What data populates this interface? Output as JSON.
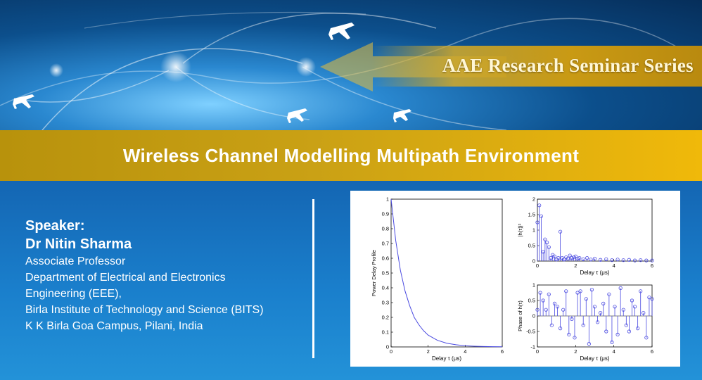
{
  "banner": {
    "series_title": "AAE Research Seminar Series"
  },
  "title": "Wireless Channel Modelling Multipath Environment",
  "speaker": {
    "heading": "Speaker:",
    "name": "Dr Nitin Sharma",
    "lines": [
      "Associate Professor",
      "Department of Electrical and Electronics",
      "Engineering (EEE),",
      "Birla Institute of Technology and Science (BITS)",
      "K K Birla Goa Campus, Pilani, India"
    ]
  },
  "chart_data": [
    {
      "type": "line",
      "xlabel": "Delay τ (μs)",
      "ylabel": "Power Delay Profile",
      "xlim": [
        0,
        6
      ],
      "ylim": [
        0,
        1
      ],
      "xticks": [
        "0",
        "2",
        "4",
        "6"
      ],
      "yticks": [
        "0",
        "0.1",
        "0.2",
        "0.3",
        "0.4",
        "0.5",
        "0.6",
        "0.7",
        "0.8",
        "0.9",
        "1"
      ],
      "x": [
        0,
        0.25,
        0.5,
        0.75,
        1,
        1.25,
        1.5,
        1.75,
        2,
        2.5,
        3,
        3.5,
        4,
        4.5,
        5,
        5.5,
        6
      ],
      "y": [
        1,
        0.72,
        0.52,
        0.38,
        0.28,
        0.2,
        0.15,
        0.11,
        0.08,
        0.045,
        0.025,
        0.015,
        0.008,
        0.005,
        0.003,
        0.002,
        0.001
      ],
      "color": "#4a4ae0"
    },
    {
      "type": "scatter",
      "xlabel": "Delay τ (μs)",
      "ylabel": "|h(τ)|²",
      "xlim": [
        0,
        6
      ],
      "ylim": [
        0,
        2
      ],
      "xticks": [
        "0",
        "2",
        "4",
        "6"
      ],
      "yticks": [
        "0",
        "0.5",
        "1",
        "1.5",
        "2"
      ],
      "x": [
        0,
        0.1,
        0.2,
        0.3,
        0.4,
        0.5,
        0.6,
        0.7,
        0.8,
        0.9,
        1.0,
        1.1,
        1.2,
        1.3,
        1.4,
        1.5,
        1.6,
        1.7,
        1.8,
        1.9,
        2.0,
        2.1,
        2.2,
        2.4,
        2.6,
        2.8,
        3.0,
        3.3,
        3.6,
        3.9,
        4.2,
        4.5,
        4.8,
        5.1,
        5.4,
        5.7,
        6.0
      ],
      "y": [
        1.25,
        1.8,
        1.45,
        0.3,
        0.7,
        0.6,
        0.45,
        0.1,
        0.2,
        0.15,
        0.05,
        0.1,
        0.95,
        0.1,
        0.05,
        0.12,
        0.08,
        0.18,
        0.1,
        0.12,
        0.15,
        0.08,
        0.1,
        0.06,
        0.1,
        0.05,
        0.08,
        0.04,
        0.06,
        0.03,
        0.05,
        0.03,
        0.04,
        0.02,
        0.03,
        0.02,
        0.02
      ],
      "color": "#4a4ae0"
    },
    {
      "type": "scatter",
      "xlabel": "Delay τ (μs)",
      "ylabel": "Phase of h(τ)",
      "xlim": [
        0,
        6
      ],
      "ylim": [
        -1,
        1
      ],
      "xticks": [
        "0",
        "2",
        "4",
        "6"
      ],
      "yticks": [
        "-1",
        "-0.5",
        "0",
        "0.5",
        "1"
      ],
      "x": [
        0,
        0.15,
        0.3,
        0.45,
        0.6,
        0.75,
        0.9,
        1.05,
        1.2,
        1.35,
        1.5,
        1.65,
        1.8,
        1.95,
        2.1,
        2.25,
        2.4,
        2.55,
        2.7,
        2.85,
        3.0,
        3.15,
        3.3,
        3.45,
        3.6,
        3.75,
        3.9,
        4.05,
        4.2,
        4.35,
        4.5,
        4.65,
        4.8,
        4.95,
        5.1,
        5.25,
        5.4,
        5.55,
        5.7,
        5.85,
        6.0
      ],
      "y": [
        0.2,
        0.75,
        0.5,
        0.2,
        0.7,
        -0.3,
        0.4,
        0.3,
        -0.4,
        0.2,
        0.8,
        -0.6,
        -0.1,
        -0.7,
        0.75,
        0.8,
        -0.3,
        0.55,
        -0.9,
        0.85,
        0.3,
        -0.2,
        0.1,
        0.4,
        -0.5,
        0.7,
        -0.85,
        0.3,
        -0.6,
        0.9,
        0.2,
        -0.3,
        -0.5,
        0.5,
        0.3,
        -0.4,
        0.8,
        0.1,
        -0.7,
        0.6,
        0.55
      ],
      "color": "#4a4ae0"
    }
  ]
}
